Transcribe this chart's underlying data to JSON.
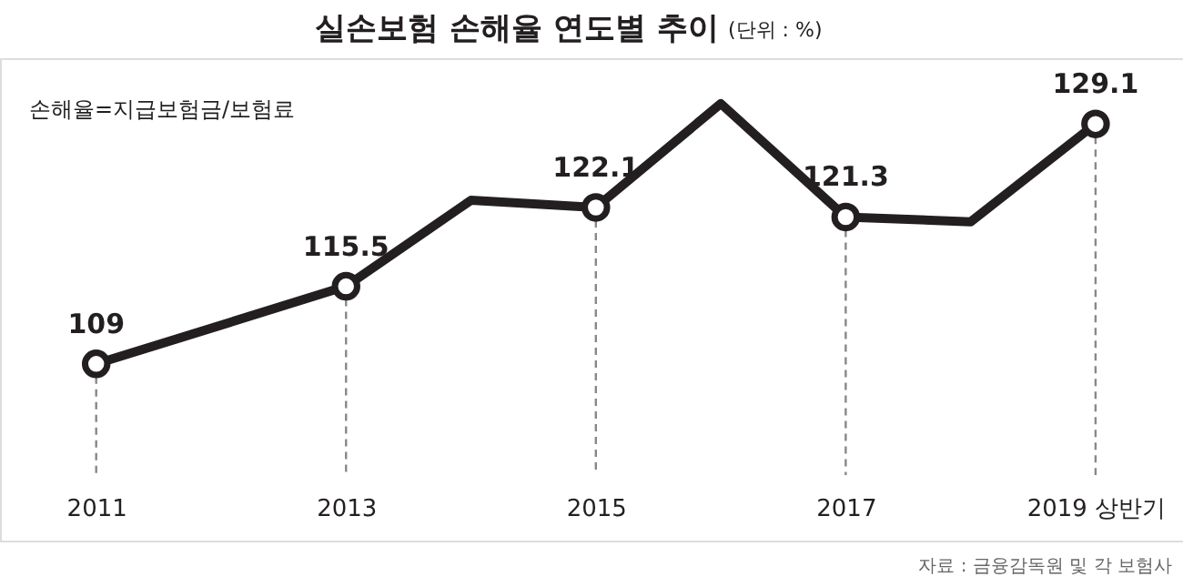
{
  "chart_data": {
    "type": "line",
    "title": "실손보험 손해율 연도별 추이",
    "subtitle": "(단위 : %)",
    "annotations": [
      "손해율=지급보험금/보험료",
      "자료 : 금융감독원 및 각 보험사"
    ],
    "series": [
      {
        "color": "#231f20",
        "x": [
          2011,
          2013,
          2014,
          2015,
          2016,
          2017,
          2018,
          2019
        ],
        "values": [
          109,
          115.5,
          122.7,
          122.1,
          130.8,
          121.3,
          120.9,
          129.1
        ],
        "value_labels": [
          "109",
          "115.5",
          null,
          "122.1",
          null,
          "121.3",
          null,
          "129.1"
        ]
      }
    ],
    "xlim": [
      2010.23,
      2019.7
    ],
    "ylim": [
      94.2,
      134.6
    ],
    "xticks": [
      2011,
      2013,
      2015,
      2017,
      {
        "value": 2019,
        "label": "2019 상반기"
      }
    ],
    "tick_labels": "x",
    "marker": "circle",
    "line_style": "solid",
    "grid": false,
    "ref_lines": [
      {
        "axis": "x",
        "value": 2011,
        "color": "#888888",
        "line_style": "dashed"
      },
      {
        "axis": "x",
        "value": 2013,
        "color": "#888888",
        "line_style": "dashed"
      },
      {
        "axis": "x",
        "value": 2015,
        "color": "#888888",
        "line_style": "dashed"
      },
      {
        "axis": "x",
        "value": 2017,
        "color": "#888888",
        "line_style": "dashed"
      },
      {
        "axis": "x",
        "value": 2019,
        "color": "#888888",
        "line_style": "dashed"
      }
    ]
  }
}
